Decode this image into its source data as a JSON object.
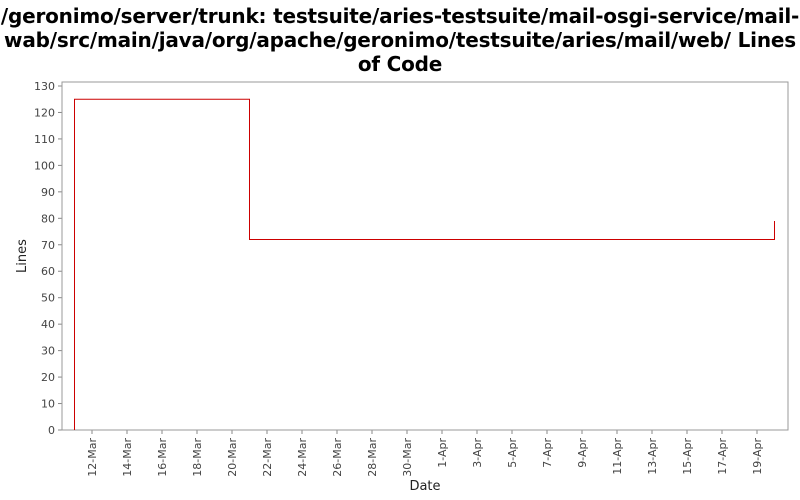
{
  "chart_data": {
    "type": "line",
    "title": "/geronimo/server/trunk: testsuite/aries-testsuite/mail-osgi-service/mail-wab/src/main/java/org/apache/geronimo/testsuite/aries/mail/web/ Lines of Code",
    "xlabel": "Date",
    "ylabel": "Lines",
    "ylim": [
      0,
      130
    ],
    "yticks": [
      0,
      10,
      20,
      30,
      40,
      50,
      60,
      70,
      80,
      90,
      100,
      110,
      120,
      130
    ],
    "xticks": [
      "12-Mar",
      "14-Mar",
      "16-Mar",
      "18-Mar",
      "20-Mar",
      "22-Mar",
      "24-Mar",
      "26-Mar",
      "28-Mar",
      "30-Mar",
      "1-Apr",
      "3-Apr",
      "5-Apr",
      "7-Apr",
      "9-Apr",
      "11-Apr",
      "13-Apr",
      "15-Apr",
      "17-Apr",
      "19-Apr"
    ],
    "grid": false,
    "step": true,
    "series": [
      {
        "color": "#cc0000",
        "points": [
          {
            "x": "11-Mar",
            "y": 0
          },
          {
            "x": "11-Mar",
            "y": 125
          },
          {
            "x": "21-Mar",
            "y": 125
          },
          {
            "x": "21-Mar",
            "y": 72
          },
          {
            "x": "20-Apr",
            "y": 72
          },
          {
            "x": "20-Apr",
            "y": 79
          }
        ]
      }
    ]
  }
}
